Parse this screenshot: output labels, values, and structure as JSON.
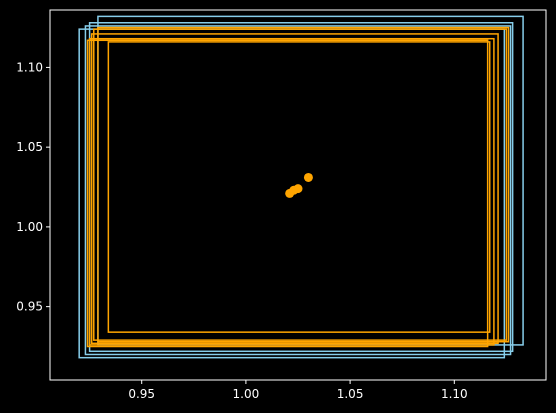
{
  "chart_data": {
    "type": "scatter",
    "title": "",
    "xlabel": "",
    "ylabel": "",
    "xlim": [
      0.906,
      1.144
    ],
    "ylim": [
      0.904,
      1.136
    ],
    "grid": false,
    "background": "#000000",
    "axis_color": "#ffffff",
    "x_ticks": [
      {
        "value": 0.95,
        "label": "0.95"
      },
      {
        "value": 1.0,
        "label": "1.00"
      },
      {
        "value": 1.05,
        "label": "1.05"
      },
      {
        "value": 1.1,
        "label": "1.10"
      }
    ],
    "y_ticks": [
      {
        "value": 0.95,
        "label": "0.95"
      },
      {
        "value": 1.0,
        "label": "1.00"
      },
      {
        "value": 1.05,
        "label": "1.05"
      },
      {
        "value": 1.1,
        "label": "1.10"
      }
    ],
    "points": {
      "color": "#ffa500",
      "x": [
        1.021,
        1.023,
        1.025,
        1.03
      ],
      "y": [
        1.021,
        1.023,
        1.024,
        1.031
      ]
    },
    "rectangles": [
      {
        "color": "#87ceeb",
        "x0": 0.92,
        "y0": 0.918,
        "x1": 1.124,
        "y1": 1.124
      },
      {
        "color": "#87ceeb",
        "x0": 0.923,
        "y0": 0.92,
        "x1": 1.127,
        "y1": 1.126
      },
      {
        "color": "#87ceeb",
        "x0": 0.929,
        "y0": 0.926,
        "x1": 1.133,
        "y1": 1.132
      },
      {
        "color": "#87ceeb",
        "x0": 0.925,
        "y0": 0.922,
        "x1": 1.128,
        "y1": 1.128
      },
      {
        "color": "#ffa500",
        "x0": 0.924,
        "y0": 0.925,
        "x1": 1.116,
        "y1": 1.117
      },
      {
        "color": "#ffa500",
        "x0": 0.925,
        "y0": 0.926,
        "x1": 1.119,
        "y1": 1.118
      },
      {
        "color": "#ffa500",
        "x0": 0.926,
        "y0": 0.927,
        "x1": 1.121,
        "y1": 1.121
      },
      {
        "color": "#ffa500",
        "x0": 0.927,
        "y0": 0.929,
        "x1": 1.125,
        "y1": 1.124
      },
      {
        "color": "#ffa500",
        "x0": 0.929,
        "y0": 0.928,
        "x1": 1.126,
        "y1": 1.125
      },
      {
        "color": "#ffa500",
        "x0": 0.934,
        "y0": 0.934,
        "x1": 1.117,
        "y1": 1.116
      }
    ]
  }
}
